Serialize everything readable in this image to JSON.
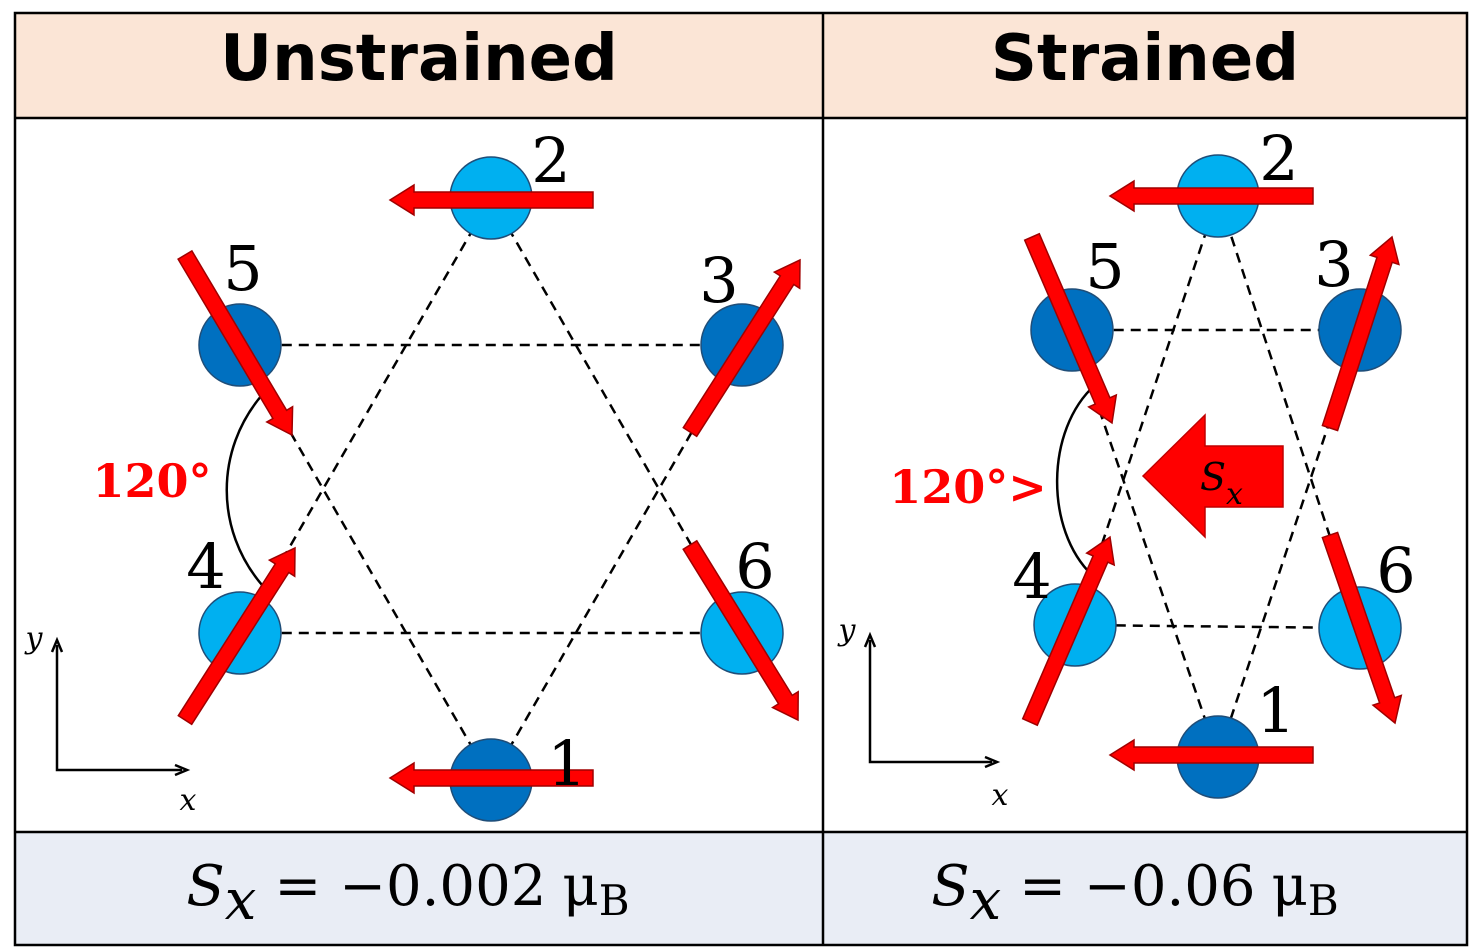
{
  "unstrained": {
    "title": "Unstrained",
    "site_labels": [
      "1",
      "2",
      "3",
      "4",
      "5",
      "6"
    ],
    "angle": "120°",
    "axis_x": "x",
    "axis_y": "y",
    "moment": {
      "symbol": "S",
      "sub": "x",
      "equals": "= −0.002",
      "unit": "μ",
      "unit_sub": "B"
    }
  },
  "strained": {
    "title": "Strained",
    "site_labels": [
      "1",
      "2",
      "3",
      "4",
      "5",
      "6"
    ],
    "angle": "120°>",
    "axis_x": "x",
    "axis_y": "y",
    "net_arrow": {
      "symbol": "S",
      "sub": "x"
    },
    "moment": {
      "symbol": "S",
      "sub": "x",
      "equals": "= −0.06",
      "unit": "μ",
      "unit_sub": "B"
    }
  }
}
